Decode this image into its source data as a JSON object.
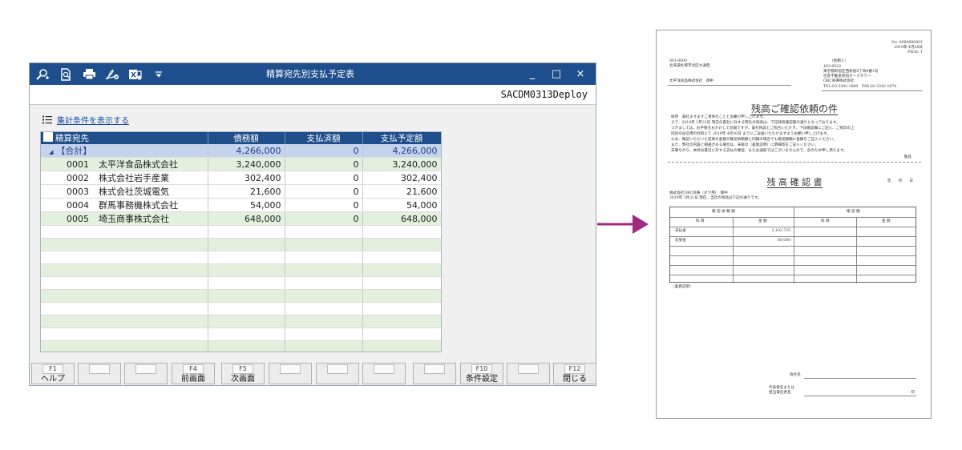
{
  "window": {
    "title": "精算宛先別支払予定表",
    "program_id": "SACDM0313Deploy",
    "toolbar_icons": [
      "search-plus-icon",
      "search-doc-icon",
      "print-icon",
      "pdf-export-icon",
      "excel-export-icon",
      "dropdown-icon"
    ],
    "controls": {
      "minimize": "_",
      "maximize": "□",
      "close": "×"
    }
  },
  "filter_link": "集計条件を表示する",
  "grid": {
    "columns": [
      "精算宛先",
      "債務額",
      "支払済額",
      "支払予定額"
    ],
    "total": {
      "label": "【合計】",
      "debt": "4,266,000",
      "paid": "0",
      "scheduled": "4,266,000"
    },
    "rows": [
      {
        "code": "0001",
        "name": "太平洋食品株式会社",
        "debt": "3,240,000",
        "paid": "0",
        "scheduled": "3,240,000"
      },
      {
        "code": "0002",
        "name": "株式会社岩手産業",
        "debt": "302,400",
        "paid": "0",
        "scheduled": "302,400"
      },
      {
        "code": "0003",
        "name": "株式会社茨城電気",
        "debt": "21,600",
        "paid": "0",
        "scheduled": "21,600"
      },
      {
        "code": "0004",
        "name": "群馬事務機株式会社",
        "debt": "54,000",
        "paid": "0",
        "scheduled": "54,000"
      },
      {
        "code": "0005",
        "name": "埼玉商事株式会社",
        "debt": "648,000",
        "paid": "0",
        "scheduled": "648,000"
      }
    ]
  },
  "function_keys": [
    {
      "code": "F1",
      "label": "ヘルプ"
    },
    {
      "code": "",
      "label": ""
    },
    {
      "code": "",
      "label": ""
    },
    {
      "code": "F4",
      "label": "前画面"
    },
    {
      "code": "F5",
      "label": "次画面"
    },
    {
      "code": "",
      "label": ""
    },
    {
      "code": "",
      "label": ""
    },
    {
      "code": "",
      "label": ""
    },
    {
      "code": "",
      "label": ""
    },
    {
      "code": "F10",
      "label": "条件設定"
    },
    {
      "code": "",
      "label": ""
    },
    {
      "code": "F12",
      "label": "閉じる"
    }
  ],
  "arrow_color": "#a3287f",
  "document": {
    "number": "No. 0000000001",
    "date": "2019年 4月28日",
    "page": "PAGE: 1",
    "to_zip": "001-0000",
    "to_address": "北海道札幌市北区大通西",
    "to_company": "太平洋食品株式会社　御中",
    "requester_label": "（依頼人）",
    "from_zip": "163-6032",
    "from_address_1": "東京都新宿区西新宿6丁目8番1号",
    "from_address_2": "住友不動産新宿オークタワー",
    "from_company": "OBC商事株式会社",
    "from_tel": "TEL:03-3342-1880　FAX:03-3342-1874",
    "title": "残高ご確認依頼の件",
    "body_lines": [
      "拝啓　貴社ますますご清栄のこととお慶び申し上げます。",
      "さて、2019年 3月31日 現在の貴社に対する弊社の残高は、下記残高確認書の通りとなっております。",
      "つきましては、お手数をおかけして恐縮ですが、貴社残高とご照合いただき、下記確認欄にご記入、ご捺印の上",
      "同封の返信用の封筒にて 2019年 4月30日 までにご返送いただけますようお願い申し上げます。",
      "なお、確認いただいた結果の金額が確認依頼額と同額の場合でも確認額欄に金額をご記入ください。",
      "また、弊社の内容と相違がある場合は、末尾の（差異説明）に明細等をご記入ください。",
      "末筆ながら、本状は貴社に対する支払の催促、または通知ではございませんので、念のため申し添えます。"
    ],
    "closing": "敬具",
    "confirm_title": "残 高 確 認 書",
    "date_blank": "年　　月　　日",
    "confirm_to": "株式会社OBC商事（ダヤ用）　御中",
    "confirm_intro": "2019年 3月31日 現在、当社の残高は下記の通りです。",
    "table_headers": {
      "requested": "確 認 依 頼 額",
      "confirmed": "確 認 額",
      "account": "科 目",
      "amount": "金 額"
    },
    "table_rows": [
      {
        "account": "未払金",
        "amount": "3,103,735"
      },
      {
        "account": "前受金",
        "amount": "60,000"
      }
    ],
    "diff_note": "（差異説明）",
    "company_name_label": "会社名",
    "rep_label_1": "代表者名または",
    "rep_label_2": "担当責任者名",
    "seal_mark": "印"
  }
}
